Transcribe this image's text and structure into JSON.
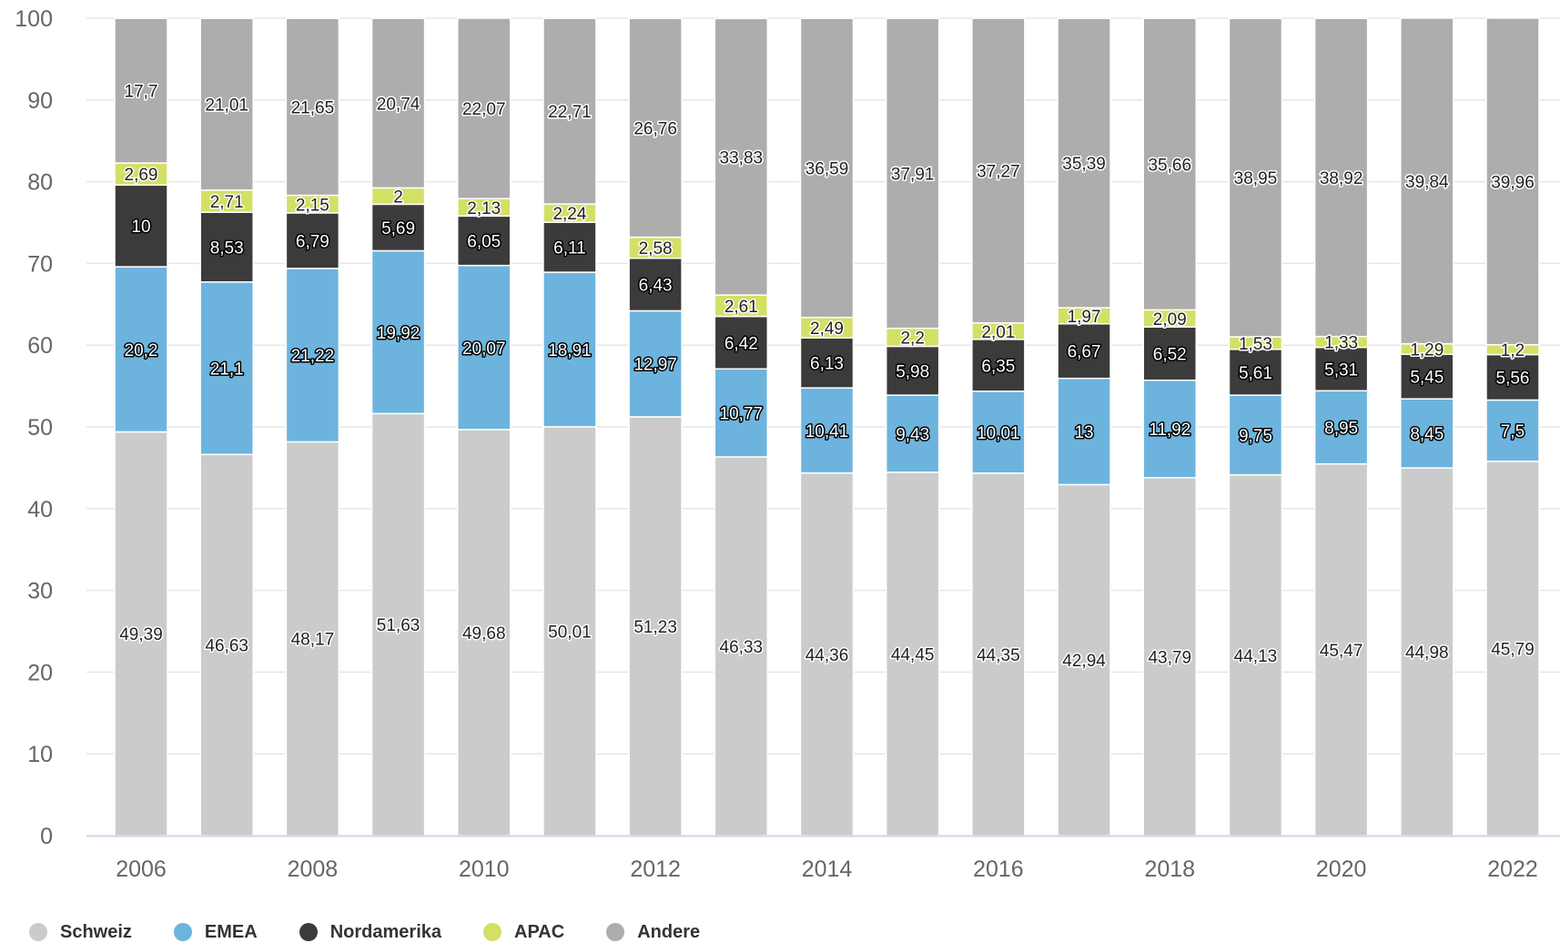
{
  "chart_data": {
    "type": "bar",
    "stacked": true,
    "title": "",
    "xlabel": "",
    "ylabel": "",
    "ylim": [
      0,
      100
    ],
    "yticks": [
      0,
      10,
      20,
      30,
      40,
      50,
      60,
      70,
      80,
      90,
      100
    ],
    "grid": true,
    "legend_position": "bottom-left",
    "categories": [
      "2006",
      "2007",
      "2008",
      "2009",
      "2010",
      "2011",
      "2012",
      "2013",
      "2014",
      "2015",
      "2016",
      "2017",
      "2018",
      "2019",
      "2020",
      "2021",
      "2022"
    ],
    "x_tick_labels": [
      "2006",
      "2008",
      "2010",
      "2012",
      "2014",
      "2016",
      "2018",
      "2020",
      "2022"
    ],
    "series": [
      {
        "name": "Schweiz",
        "color": "#cbcbcb",
        "values": [
          49.39,
          46.63,
          48.17,
          51.63,
          49.68,
          50.01,
          51.23,
          46.33,
          44.36,
          44.45,
          44.35,
          42.94,
          43.79,
          44.13,
          45.47,
          44.98,
          45.79
        ],
        "labels": [
          "49,39",
          "46,63",
          "48,17",
          "51,63",
          "49,68",
          "50,01",
          "51,23",
          "46,33",
          "44,36",
          "44,45",
          "44,35",
          "42,94",
          "43,79",
          "44,13",
          "45,47",
          "44,98",
          "45,79"
        ]
      },
      {
        "name": "EMEA",
        "color": "#6cb4de",
        "values": [
          20.2,
          21.1,
          21.22,
          19.92,
          20.07,
          18.91,
          12.97,
          10.77,
          10.41,
          9.43,
          10.01,
          13,
          11.92,
          9.75,
          8.95,
          8.45,
          7.5
        ],
        "labels": [
          "20,2",
          "21,1",
          "21,22",
          "19,92",
          "20,07",
          "18,91",
          "12,97",
          "10,77",
          "10,41",
          "9,43",
          "10,01",
          "13",
          "11,92",
          "9,75",
          "8,95",
          "8,45",
          "7,5"
        ]
      },
      {
        "name": "Nordamerika",
        "color": "#3b3b3b",
        "values": [
          10,
          8.53,
          6.79,
          5.69,
          6.05,
          6.11,
          6.43,
          6.42,
          6.13,
          5.98,
          6.35,
          6.67,
          6.52,
          5.61,
          5.31,
          5.45,
          5.56
        ],
        "labels": [
          "10",
          "8,53",
          "6,79",
          "5,69",
          "6,05",
          "6,11",
          "6,43",
          "6,42",
          "6,13",
          "5,98",
          "6,35",
          "6,67",
          "6,52",
          "5,61",
          "5,31",
          "5,45",
          "5,56"
        ]
      },
      {
        "name": "APAC",
        "color": "#d4df66",
        "values": [
          2.69,
          2.71,
          2.15,
          2,
          2.13,
          2.24,
          2.58,
          2.61,
          2.49,
          2.2,
          2.01,
          1.97,
          2.09,
          1.53,
          1.33,
          1.29,
          1.2
        ],
        "labels": [
          "2,69",
          "2,71",
          "2,15",
          "2",
          "2,13",
          "2,24",
          "2,58",
          "2,61",
          "2,49",
          "2,2",
          "2,01",
          "1,97",
          "2,09",
          "1,53",
          "1,33",
          "1,29",
          "1,2"
        ]
      },
      {
        "name": "Andere",
        "color": "#adadad",
        "values": [
          17.7,
          21.01,
          21.65,
          20.74,
          22.07,
          22.71,
          26.76,
          33.83,
          36.59,
          37.91,
          37.27,
          35.39,
          35.66,
          38.95,
          38.92,
          39.84,
          39.96
        ],
        "labels": [
          "17,7",
          "21,01",
          "21,65",
          "20,74",
          "22,07",
          "22,71",
          "26,76",
          "33,83",
          "36,59",
          "37,91",
          "37,27",
          "35,39",
          "35,66",
          "38,95",
          "38,92",
          "39,84",
          "39,96"
        ]
      }
    ],
    "colors": {
      "grid": "#e6e6e6",
      "axis_line": "#ccd6eb",
      "tick_label": "#666666",
      "legend_text": "#333333"
    }
  }
}
